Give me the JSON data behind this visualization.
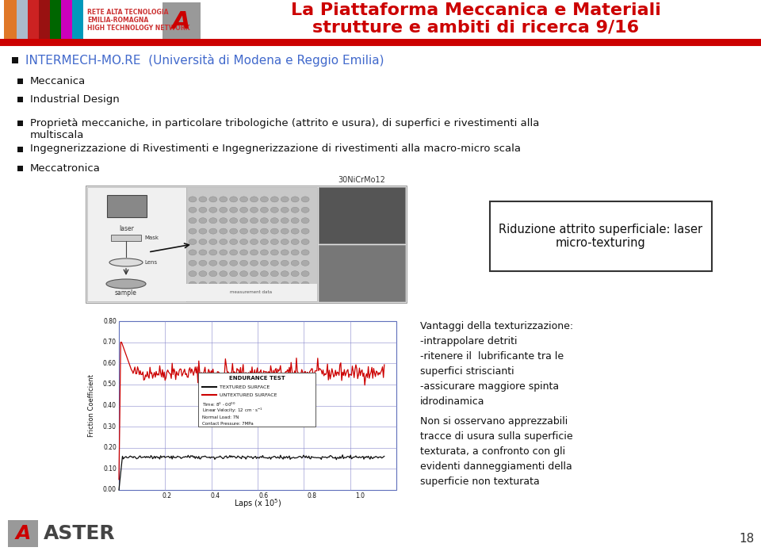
{
  "title_line1": "La Piattaforma Meccanica e Materiali",
  "title_line2": "strutture e ambiti di ricerca 9/16",
  "title_color": "#cc0000",
  "bg_color": "#ffffff",
  "slide_number": "18",
  "intermech_text": "INTERMECH-MO.RE  (Università di Modena e Reggio Emilia)",
  "intermech_color": "#4169cc",
  "bullets": [
    "Meccanica",
    "Industrial Design",
    "Proprietà meccaniche, in particolare tribologiche (attrito e usura), di superfici e rivestimenti alla\nmultiscala",
    "Ingegnerizzazione di Rivestimenti e Ingegnerizzazione di rivestimenti alla macro-micro scala",
    "Meccatronica"
  ],
  "box_text": "Riduzione attrito superficiale: laser\nmicro-texturing",
  "right_text1": "Vantaggi della texturizzazione:\n-intrappolare detriti\n-ritenere il  lubrificante tra le\nsuperfici striscianti\n-assicurare maggiore spinta\nidrodinamica",
  "right_text2": "Non si osservano apprezzabili\ntracce di usura sulla superficie\ntexturata, a confronto con gli\nevidenti danneggiamenti della\nsuperficie non texturata",
  "header_line_color": "#cc0000",
  "logo_bar_colors": [
    "#e07020",
    "#bbccdd",
    "#cc0000",
    "#006600",
    "#cc00cc",
    "#00aacc"
  ],
  "logo_text_color": "#cc3333",
  "aster_gray": "#888888"
}
